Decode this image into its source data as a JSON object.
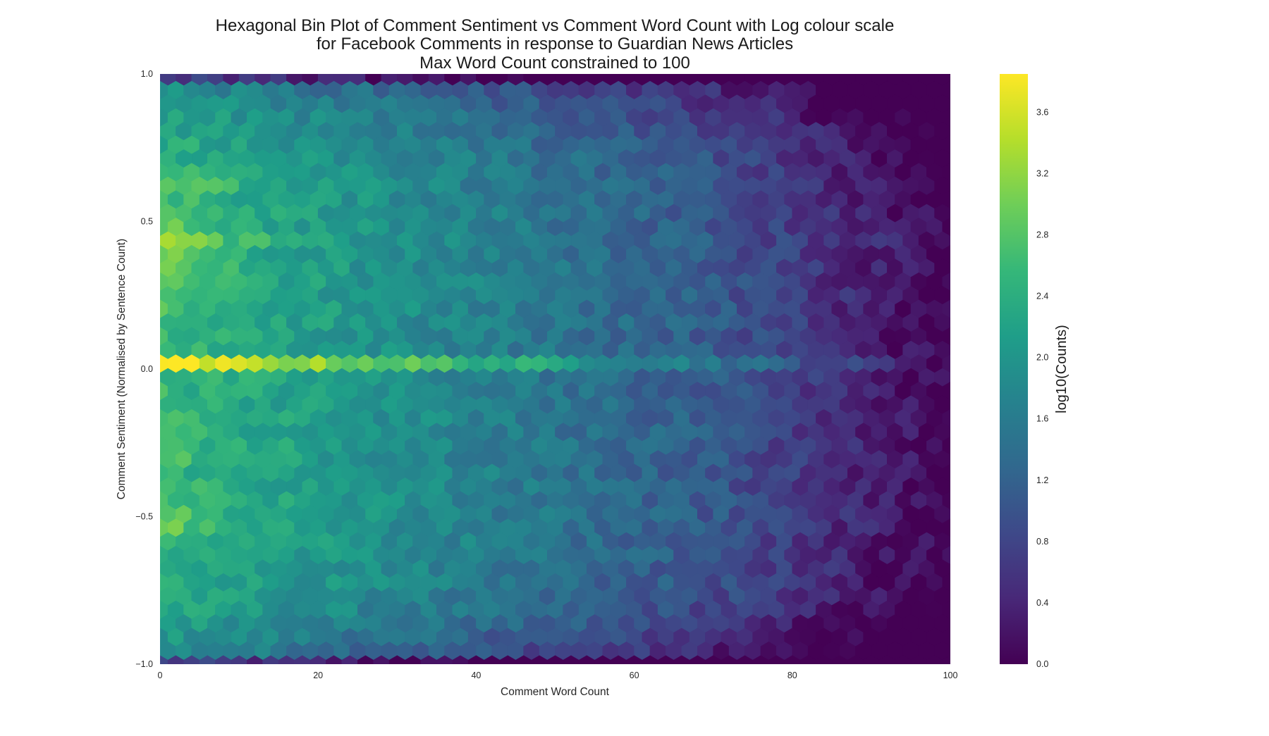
{
  "chart_data": {
    "type": "heatmap",
    "subtype": "hexbin",
    "title": [
      "Hexagonal Bin Plot of Comment Sentiment vs Comment Word Count with Log colour scale",
      "for Facebook Comments in response to Guardian News Articles",
      "Max Word Count constrained to 100"
    ],
    "xlabel": "Comment Word Count",
    "ylabel": "Comment Sentiment (Normalised by Sentence Count)",
    "xlim": [
      0,
      100
    ],
    "ylim": [
      -1.0,
      1.0
    ],
    "x_ticks": [
      {
        "value": 0,
        "label": "0"
      },
      {
        "value": 20,
        "label": "20"
      },
      {
        "value": 40,
        "label": "40"
      },
      {
        "value": 60,
        "label": "60"
      },
      {
        "value": 80,
        "label": "80"
      },
      {
        "value": 100,
        "label": "100"
      }
    ],
    "y_ticks": [
      {
        "value": -1.0,
        "label": "−1.0"
      },
      {
        "value": -0.5,
        "label": "−0.5"
      },
      {
        "value": 0.0,
        "label": "0.0"
      },
      {
        "value": 0.5,
        "label": "0.5"
      },
      {
        "value": 1.0,
        "label": "1.0"
      }
    ],
    "grid": false,
    "colormap": "viridis",
    "colorbar": {
      "label": "log10(Counts)",
      "range": [
        0.0,
        3.85
      ],
      "ticks": [
        {
          "value": 0.0,
          "label": "0.0"
        },
        {
          "value": 0.4,
          "label": "0.4"
        },
        {
          "value": 0.8,
          "label": "0.8"
        },
        {
          "value": 1.2,
          "label": "1.2"
        },
        {
          "value": 1.6,
          "label": "1.6"
        },
        {
          "value": 2.0,
          "label": "2.0"
        },
        {
          "value": 2.4,
          "label": "2.4"
        },
        {
          "value": 2.8,
          "label": "2.8"
        },
        {
          "value": 3.2,
          "label": "3.2"
        },
        {
          "value": 3.6,
          "label": "3.6"
        }
      ]
    },
    "hexbin": {
      "gridsize_x": 50,
      "x_extent": [
        0,
        100
      ],
      "y_extent": [
        -1.0,
        1.0
      ],
      "description": "log10 counts per hexagonal bin",
      "density_model": {
        "zero_sentiment_ridge": {
          "y": 0.0,
          "peak_log10": 3.8,
          "decay_per_word": 0.032
        },
        "bands": [
          {
            "y": 0.43,
            "peak_log10": 3.35
          },
          {
            "y": 0.32,
            "peak_log10": 3.2
          },
          {
            "y": 0.62,
            "peak_log10": 3.05
          },
          {
            "y": 0.2,
            "peak_log10": 2.9
          },
          {
            "y": -0.28,
            "peak_log10": 3.0
          },
          {
            "y": -0.52,
            "peak_log10": 3.1
          },
          {
            "y": -0.12,
            "peak_log10": 2.75
          }
        ],
        "background_decay_per_word": 0.021,
        "edge_low_y": [
          -1.0,
          1.0
        ]
      }
    },
    "viridis_colors": [
      "#440154",
      "#482878",
      "#3e4989",
      "#31688e",
      "#26828e",
      "#1f9e89",
      "#35b779",
      "#6ece58",
      "#b5de2b",
      "#fde725"
    ]
  }
}
